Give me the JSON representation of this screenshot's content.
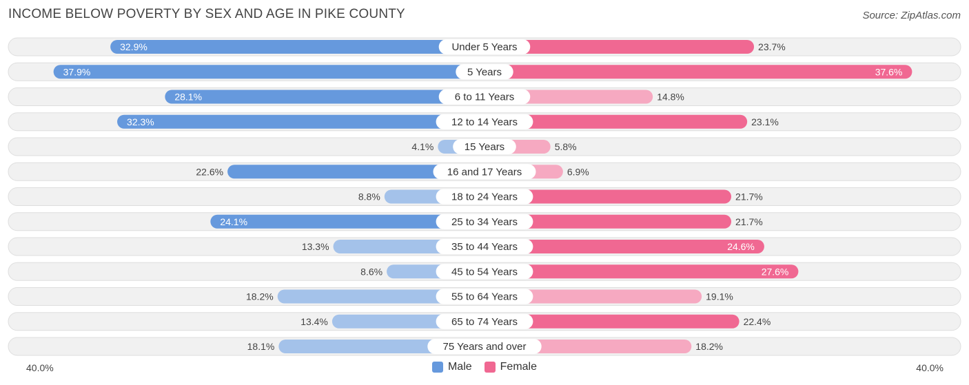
{
  "header": {
    "title": "INCOME BELOW POVERTY BY SEX AND AGE IN PIKE COUNTY",
    "source": "Source: ZipAtlas.com"
  },
  "axis": {
    "left_label": "40.0%",
    "right_label": "40.0%"
  },
  "legend": {
    "male_label": "Male",
    "female_label": "Female"
  },
  "colors": {
    "male_strong": "#6699dd",
    "male_light": "#a4c2ea",
    "female_strong": "#f06892",
    "female_light": "#f6a9c1",
    "row_bg": "#f1f1f1",
    "row_border": "#dedede"
  },
  "chart_data": {
    "type": "bar",
    "orientation": "diverging-horizontal",
    "title": "INCOME BELOW POVERTY BY SEX AND AGE IN PIKE COUNTY",
    "xlim": [
      -40,
      40
    ],
    "unit": "%",
    "categories": [
      "Under 5 Years",
      "5 Years",
      "6 to 11 Years",
      "12 to 14 Years",
      "15 Years",
      "16 and 17 Years",
      "18 to 24 Years",
      "25 to 34 Years",
      "35 to 44 Years",
      "45 to 54 Years",
      "55 to 64 Years",
      "65 to 74 Years",
      "75 Years and over"
    ],
    "series": [
      {
        "name": "Male",
        "values": [
          32.9,
          37.9,
          28.1,
          32.3,
          4.1,
          22.6,
          8.8,
          24.1,
          13.3,
          8.6,
          18.2,
          13.4,
          18.1
        ],
        "labels": [
          "32.9%",
          "37.9%",
          "28.1%",
          "32.3%",
          "4.1%",
          "22.6%",
          "8.8%",
          "24.1%",
          "13.3%",
          "8.6%",
          "18.2%",
          "13.4%",
          "18.1%"
        ]
      },
      {
        "name": "Female",
        "values": [
          23.7,
          37.6,
          14.8,
          23.1,
          5.8,
          6.9,
          21.7,
          21.7,
          24.6,
          27.6,
          19.1,
          22.4,
          18.2
        ],
        "labels": [
          "23.7%",
          "37.6%",
          "14.8%",
          "23.1%",
          "5.8%",
          "6.9%",
          "21.7%",
          "21.7%",
          "24.6%",
          "27.6%",
          "19.1%",
          "22.4%",
          "18.2%"
        ]
      }
    ]
  }
}
